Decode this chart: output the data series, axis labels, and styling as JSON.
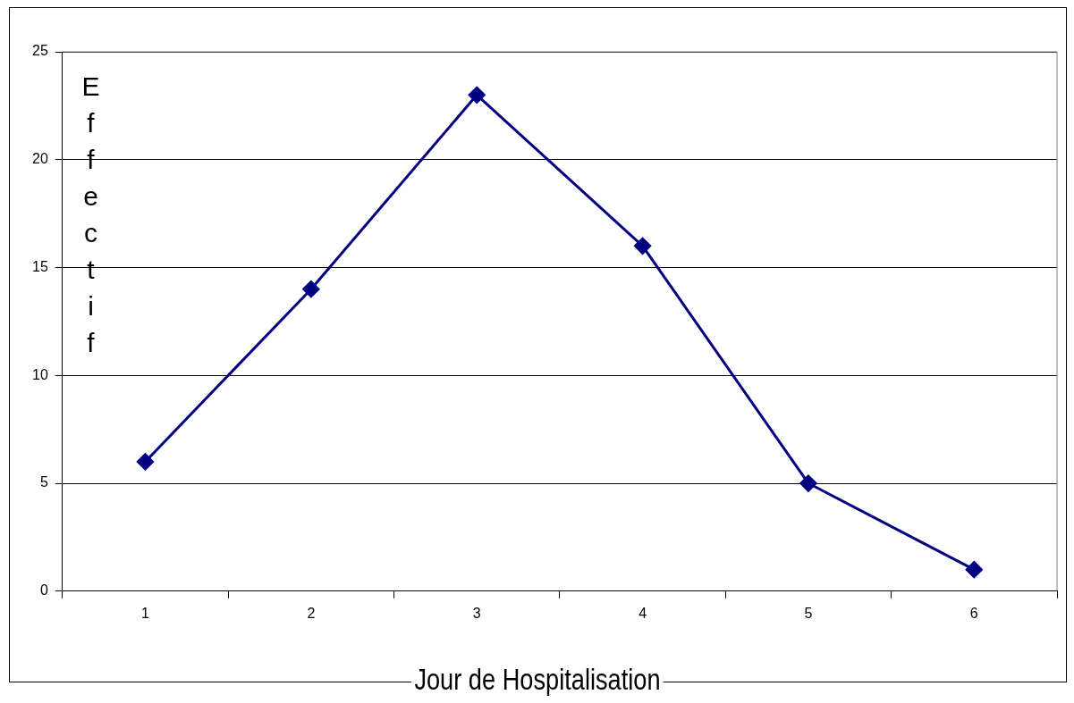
{
  "chart_data": {
    "type": "line",
    "xlabel": "Jour de Hospitalisation",
    "ylabel": "Effectif",
    "categories": [
      "1",
      "2",
      "3",
      "4",
      "5",
      "6"
    ],
    "series": [
      {
        "color": "#000080",
        "values": [
          6,
          14,
          23,
          16,
          5,
          1
        ]
      }
    ],
    "ylim": [
      0,
      25
    ],
    "yticks": [
      0,
      5,
      10,
      15,
      20,
      25
    ],
    "grid": "y",
    "legend": false,
    "marker": "diamond",
    "line_style": "solid"
  }
}
